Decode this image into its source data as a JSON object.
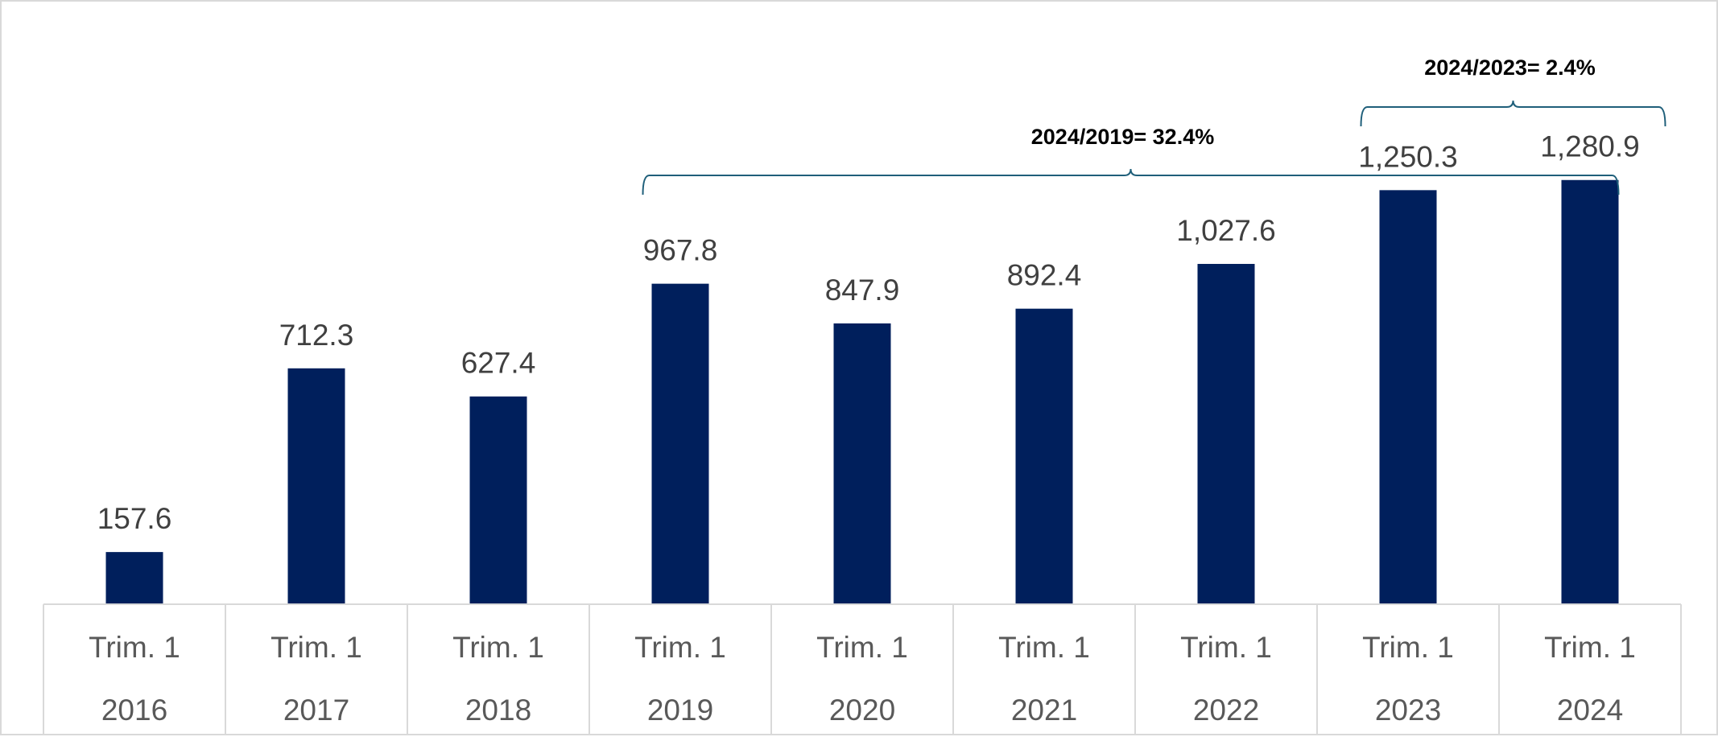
{
  "chart_data": {
    "type": "bar",
    "categories": [
      [
        "Trim. 1",
        "2016"
      ],
      [
        "Trim. 1",
        "2017"
      ],
      [
        "Trim. 1",
        "2018"
      ],
      [
        "Trim. 1",
        "2019"
      ],
      [
        "Trim. 1",
        "2020"
      ],
      [
        "Trim. 1",
        "2021"
      ],
      [
        "Trim. 1",
        "2022"
      ],
      [
        "Trim. 1",
        "2023"
      ],
      [
        "Trim. 1",
        "2024"
      ]
    ],
    "values": [
      157.6,
      712.3,
      627.4,
      967.8,
      847.9,
      892.4,
      1027.6,
      1250.3,
      1280.9
    ],
    "data_labels": [
      "157.6",
      "712.3",
      "627.4",
      "967.8",
      "847.9",
      "892.4",
      "1,027.6",
      "1,250.3",
      "1,280.9"
    ],
    "bar_color": "#001f5c",
    "bracket_color": "#1f5f7a",
    "ylim": [
      0,
      1290
    ],
    "grid": false,
    "legend": "none",
    "annotations": [
      {
        "text": "2024/2019= 32.4%",
        "from": 3,
        "to": 8
      },
      {
        "text": "2024/2023= 2.4%",
        "from": 7,
        "to": 8
      }
    ]
  }
}
